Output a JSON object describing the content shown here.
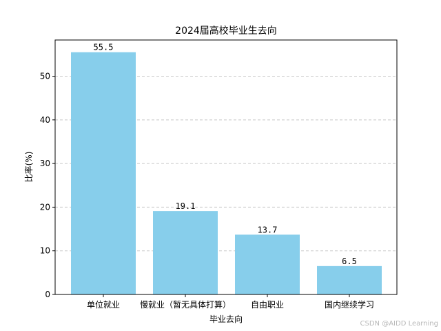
{
  "chart_data": {
    "type": "bar",
    "title": "2024届高校毕业生去向",
    "xlabel": "毕业去向",
    "ylabel": "比率(%)",
    "categories": [
      "单位就业",
      "慢就业（暂无具体打算）",
      "自由职业",
      "国内继续学习"
    ],
    "values": [
      55.5,
      19.1,
      13.7,
      6.5
    ],
    "data_labels": [
      "55.5",
      "19.1",
      "13.7",
      "6.5"
    ],
    "ylim": [
      0,
      58.3
    ],
    "yticks": [
      0,
      10,
      20,
      30,
      40,
      50
    ],
    "grid": "y-dashed",
    "bar_color": "#87CEEB"
  },
  "watermark": "CSDN @AIDD Learning"
}
